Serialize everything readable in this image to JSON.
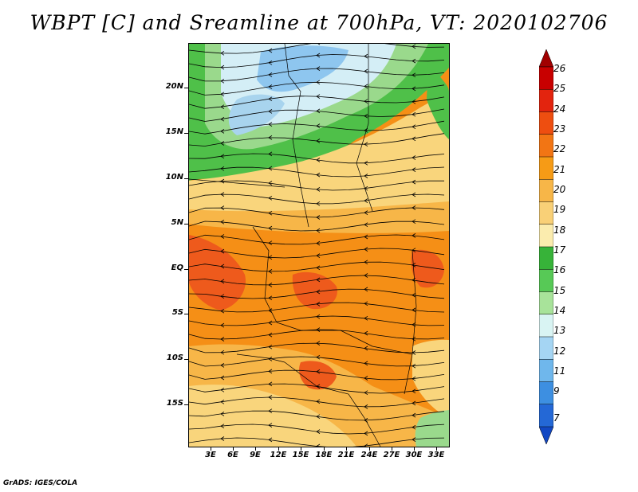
{
  "title": "WBPT [C] and Sreamline at 700hPa, VT: 2020102706",
  "footer": "GrADS: IGES/COLA",
  "lat_labels": [
    "20N",
    "15N",
    "10N",
    "5N",
    "EQ",
    "5S",
    "10S",
    "15S"
  ],
  "lon_labels": [
    "3E",
    "6E",
    "9E",
    "12E",
    "15E",
    "18E",
    "21E",
    "24E",
    "27E",
    "30E",
    "33E"
  ],
  "colorbar": {
    "levels": [
      "26",
      "25",
      "24",
      "23",
      "22",
      "21",
      "20",
      "19",
      "18",
      "17",
      "16",
      "15",
      "14",
      "13",
      "12",
      "11",
      "9",
      "7"
    ],
    "colors": [
      "#a10000",
      "#c80000",
      "#e3240e",
      "#ee4e10",
      "#f27514",
      "#f69b16",
      "#f7b648",
      "#f9d077",
      "#fbecae",
      "#37b339",
      "#57c956",
      "#a8e39a",
      "#d9f4f3",
      "#a5d5f3",
      "#6fb7ec",
      "#3d8fe1",
      "#2468d6",
      "#1248c3"
    ]
  },
  "palette": {
    "hot": "#ee5a1c",
    "orange": "#f58f16",
    "light_orange": "#f7b648",
    "yellow": "#f9d57c",
    "pale_yellow": "#fbecae",
    "green": "#4fc049",
    "light_green": "#9ad98c",
    "light_blue": "#d4eef6",
    "blue": "#8ec6ef"
  }
}
